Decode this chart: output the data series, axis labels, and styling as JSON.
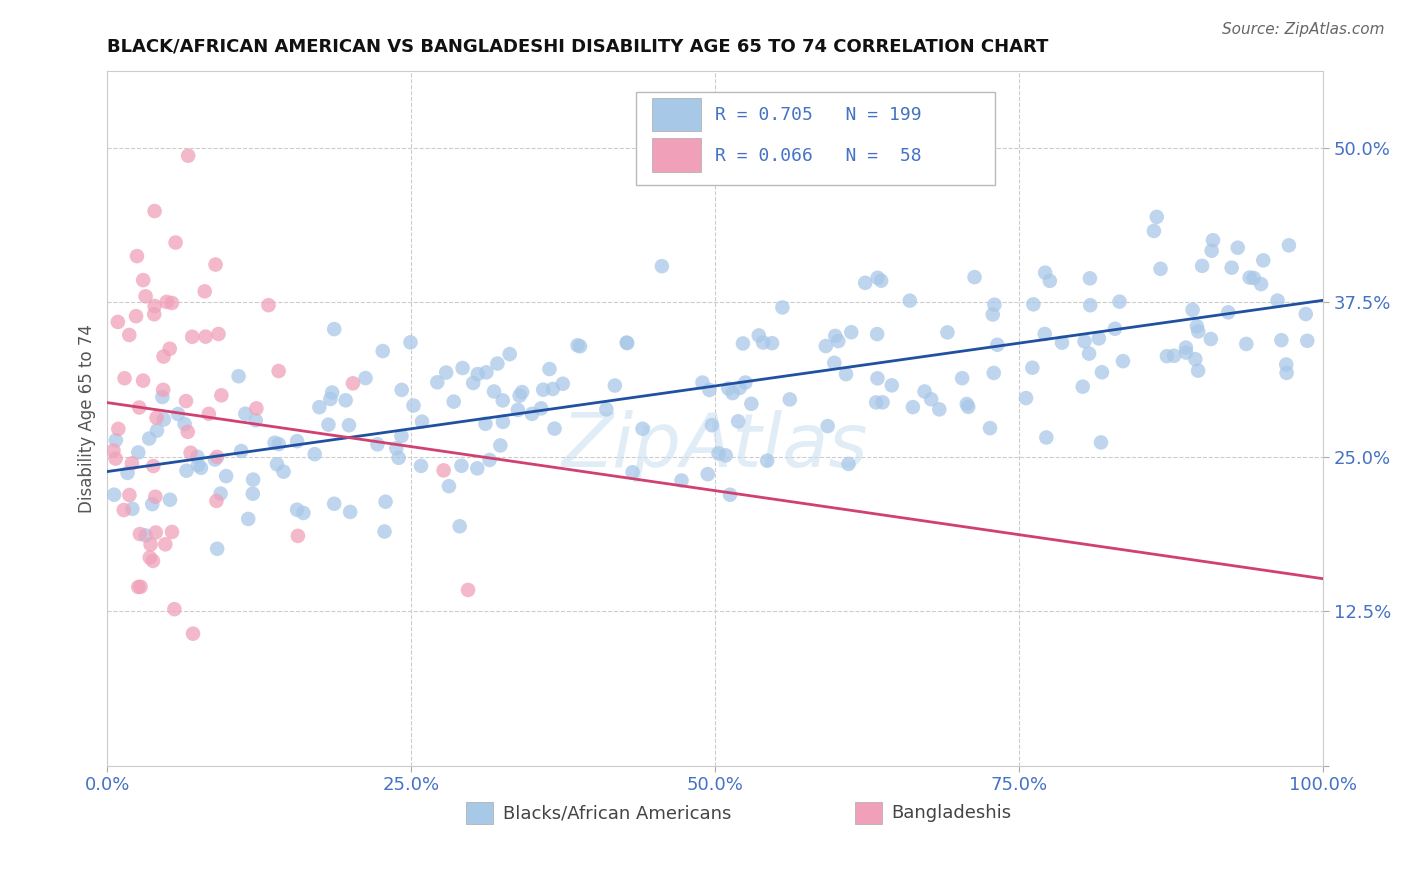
{
  "title": "BLACK/AFRICAN AMERICAN VS BANGLADESHI DISABILITY AGE 65 TO 74 CORRELATION CHART",
  "source": "Source: ZipAtlas.com",
  "ylabel": "Disability Age 65 to 74",
  "xlim": [
    0.0,
    1.0
  ],
  "ylim": [
    0.0,
    0.5625
  ],
  "xticks": [
    0.0,
    0.25,
    0.5,
    0.75,
    1.0
  ],
  "xticklabels": [
    "0.0%",
    "25.0%",
    "50.0%",
    "75.0%",
    "100.0%"
  ],
  "yticks": [
    0.0,
    0.125,
    0.25,
    0.375,
    0.5
  ],
  "yticklabels": [
    "",
    "12.5%",
    "25.0%",
    "37.5%",
    "50.0%"
  ],
  "legend_r1": "0.705",
  "legend_n1": "199",
  "legend_r2": "0.066",
  "legend_n2": " 58",
  "blue_color": "#a8c8e8",
  "pink_color": "#f0a0b8",
  "blue_line_color": "#2050a0",
  "pink_line_color": "#d04070",
  "watermark_color": "#c8ddf0",
  "grid_color": "#cccccc",
  "tick_color": "#4472c4",
  "title_color": "#111111",
  "source_color": "#666666",
  "ylabel_color": "#555555",
  "background_color": "#ffffff",
  "blue_seed": 42,
  "pink_seed": 123
}
